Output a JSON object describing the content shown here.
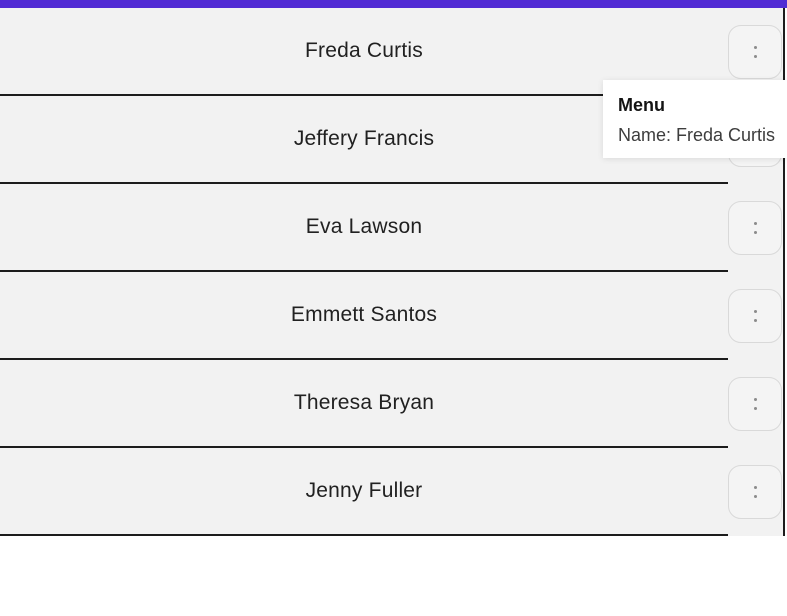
{
  "theme": {
    "accent_color": "#512BD4",
    "row_bg": "#F2F2F2",
    "divider_color": "#1C1C1C",
    "text_color": "#212121"
  },
  "list": {
    "items": [
      {
        "name": "Freda Curtis"
      },
      {
        "name": "Jeffery Francis"
      },
      {
        "name": "Eva Lawson"
      },
      {
        "name": "Emmett Santos"
      },
      {
        "name": "Theresa Bryan"
      },
      {
        "name": "Jenny Fuller"
      }
    ],
    "row_menu_icon": "vertical-dots-icon"
  },
  "menu_popup": {
    "title": "Menu",
    "item": "Name: Freda Curtis"
  }
}
